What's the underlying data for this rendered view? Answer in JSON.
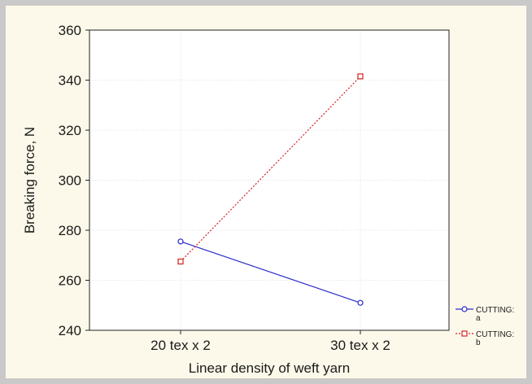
{
  "chart_data": {
    "type": "line",
    "title": "",
    "xlabel": "Linear density of weft yarn",
    "ylabel": "Breaking force, N",
    "categories": [
      "20 tex x 2",
      "30 tex x 2"
    ],
    "ylim": [
      240,
      360
    ],
    "yticks": [
      240,
      260,
      280,
      300,
      320,
      340,
      360
    ],
    "grid": true,
    "legend_position": "right-bottom",
    "series": [
      {
        "name": "CUTTING: a",
        "legend_lines": [
          "CUTTING:",
          "a"
        ],
        "values": [
          275.5,
          251
        ],
        "color": "#2a2acc",
        "line_style": "solid",
        "marker": "circle"
      },
      {
        "name": "CUTTING: b",
        "legend_lines": [
          "CUTTING:",
          "b"
        ],
        "values": [
          267.5,
          341.5
        ],
        "color": "#d42020",
        "line_style": "dotted",
        "marker": "square"
      }
    ]
  }
}
